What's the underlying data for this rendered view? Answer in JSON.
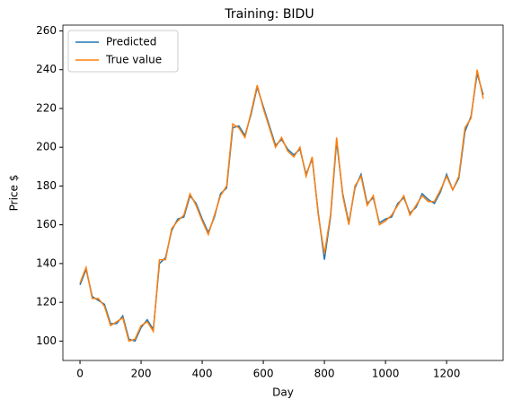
{
  "chart_data": {
    "type": "line",
    "title": "Training: BIDU",
    "x_label": "Day",
    "y_label": "Price $",
    "x": [
      0,
      20,
      40,
      60,
      80,
      100,
      120,
      140,
      160,
      180,
      200,
      220,
      240,
      260,
      280,
      300,
      320,
      340,
      360,
      380,
      400,
      420,
      440,
      460,
      480,
      500,
      520,
      540,
      560,
      580,
      600,
      620,
      640,
      660,
      680,
      700,
      720,
      740,
      760,
      780,
      800,
      820,
      840,
      860,
      880,
      900,
      920,
      940,
      960,
      980,
      1000,
      1020,
      1040,
      1060,
      1080,
      1100,
      1120,
      1140,
      1160,
      1180,
      1200,
      1220,
      1240,
      1260,
      1280,
      1300,
      1320
    ],
    "series": [
      {
        "name": "Predicted",
        "color": "#1f77b4",
        "values": [
          129,
          137,
          123,
          121,
          119,
          109,
          109,
          113,
          101,
          100,
          107,
          111,
          106,
          140,
          143,
          157,
          163,
          164,
          175,
          171,
          163,
          156,
          164,
          176,
          179,
          210,
          211,
          206,
          217,
          231,
          221,
          211,
          201,
          204,
          199,
          196,
          199,
          186,
          194,
          166,
          142,
          164,
          203,
          176,
          161,
          179,
          186,
          171,
          174,
          161,
          163,
          164,
          171,
          174,
          166,
          169,
          176,
          173,
          171,
          177,
          186,
          178,
          184,
          208,
          216,
          238,
          227
        ]
      },
      {
        "name": "True value",
        "color": "#ff7f0e",
        "values": [
          130,
          138,
          122,
          122,
          118,
          108,
          110,
          112,
          100,
          101,
          108,
          110,
          105,
          142,
          142,
          158,
          162,
          165,
          176,
          170,
          162,
          155,
          165,
          175,
          180,
          212,
          210,
          205,
          218,
          232,
          220,
          210,
          200,
          205,
          198,
          195,
          200,
          185,
          195,
          165,
          145,
          165,
          205,
          175,
          160,
          180,
          185,
          170,
          175,
          160,
          162,
          165,
          170,
          175,
          165,
          170,
          175,
          172,
          172,
          178,
          185,
          178,
          185,
          210,
          215,
          240,
          225
        ]
      }
    ],
    "xlim": [
      -56,
      1385
    ],
    "ylim": [
      90,
      263
    ],
    "xticks": [
      0,
      200,
      400,
      600,
      800,
      1000,
      1200
    ],
    "yticks": [
      100,
      120,
      140,
      160,
      180,
      200,
      220,
      240,
      260
    ],
    "legend": "upper left"
  }
}
